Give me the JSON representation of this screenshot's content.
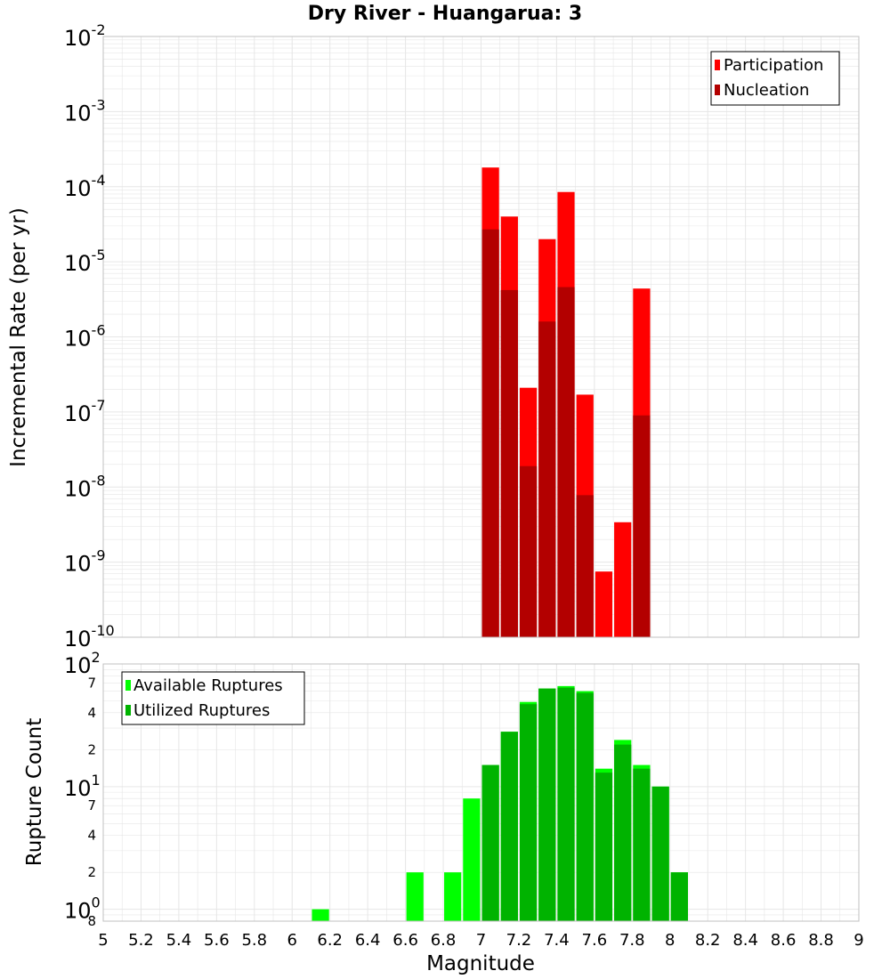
{
  "title": "Dry River - Huangarua: 3",
  "colors": {
    "participation": "#ff0000",
    "nucleation": "#b30000",
    "available": "#00ff00",
    "utilized": "#00b300",
    "grid": "#e6e6e6",
    "frame": "#c0c0c0"
  },
  "chart_data": [
    {
      "type": "bar",
      "log_y": true,
      "ylabel": "Incremental Rate (per yr)",
      "ylim": [
        1e-10,
        0.01
      ],
      "y_ticks": [
        {
          "base": "10",
          "exp": "-10"
        },
        {
          "base": "10",
          "exp": "-9"
        },
        {
          "base": "10",
          "exp": "-8"
        },
        {
          "base": "10",
          "exp": "-7"
        },
        {
          "base": "10",
          "exp": "-6"
        },
        {
          "base": "10",
          "exp": "-5"
        },
        {
          "base": "10",
          "exp": "-4"
        },
        {
          "base": "10",
          "exp": "-3"
        },
        {
          "base": "10",
          "exp": "-2"
        }
      ],
      "legend_position": "top-right",
      "x": [
        7.05,
        7.15,
        7.25,
        7.35,
        7.45,
        7.55,
        7.65,
        7.75,
        7.85
      ],
      "series": [
        {
          "name": "Participation",
          "values": [
            0.00018,
            4e-05,
            2.1e-07,
            2e-05,
            8.5e-05,
            1.7e-07,
            7.5e-10,
            3.4e-09,
            4.4e-06
          ]
        },
        {
          "name": "Nucleation",
          "values": [
            2.7e-05,
            4.2e-06,
            1.9e-08,
            1.6e-06,
            4.6e-06,
            7.8e-09,
            null,
            null,
            9e-08
          ]
        }
      ]
    },
    {
      "type": "bar",
      "log_y": true,
      "ylabel": "Rupture Count",
      "xlabel": "Magnitude",
      "ylim": [
        0.8,
        100
      ],
      "xlim": [
        5,
        9
      ],
      "x_ticks": [
        "5",
        "5.2",
        "5.4",
        "5.6",
        "5.8",
        "6",
        "6.2",
        "6.4",
        "6.6",
        "6.8",
        "7",
        "7.2",
        "7.4",
        "7.6",
        "7.8",
        "8",
        "8.2",
        "8.4",
        "8.6",
        "8.8",
        "9"
      ],
      "y_ticks": [
        {
          "value": 100,
          "label": "10",
          "exp": "2",
          "major": true
        },
        {
          "value": 70,
          "label": "7",
          "exp": "",
          "major": false
        },
        {
          "value": 40,
          "label": "4",
          "exp": "",
          "major": false
        },
        {
          "value": 20,
          "label": "2",
          "exp": "",
          "major": false
        },
        {
          "value": 10,
          "label": "10",
          "exp": "1",
          "major": true
        },
        {
          "value": 7,
          "label": "7",
          "exp": "",
          "major": false
        },
        {
          "value": 4,
          "label": "4",
          "exp": "",
          "major": false
        },
        {
          "value": 2,
          "label": "2",
          "exp": "",
          "major": false
        },
        {
          "value": 1,
          "label": "10",
          "exp": "0",
          "major": true
        },
        {
          "value": 0.8,
          "label": "8",
          "exp": "",
          "major": false
        }
      ],
      "legend_position": "top-left",
      "x": [
        6.15,
        6.65,
        6.85,
        6.95,
        7.05,
        7.15,
        7.25,
        7.35,
        7.45,
        7.55,
        7.65,
        7.75,
        7.85,
        7.95,
        8.05
      ],
      "series": [
        {
          "name": "Available Ruptures",
          "values": [
            1,
            2,
            2,
            8,
            15,
            28,
            49,
            63,
            66,
            60,
            14,
            24,
            15,
            10,
            2
          ]
        },
        {
          "name": "Utilized Ruptures",
          "values": [
            null,
            null,
            null,
            null,
            15,
            28,
            47,
            63,
            64,
            58,
            13,
            22,
            14,
            10,
            2
          ]
        }
      ]
    }
  ]
}
